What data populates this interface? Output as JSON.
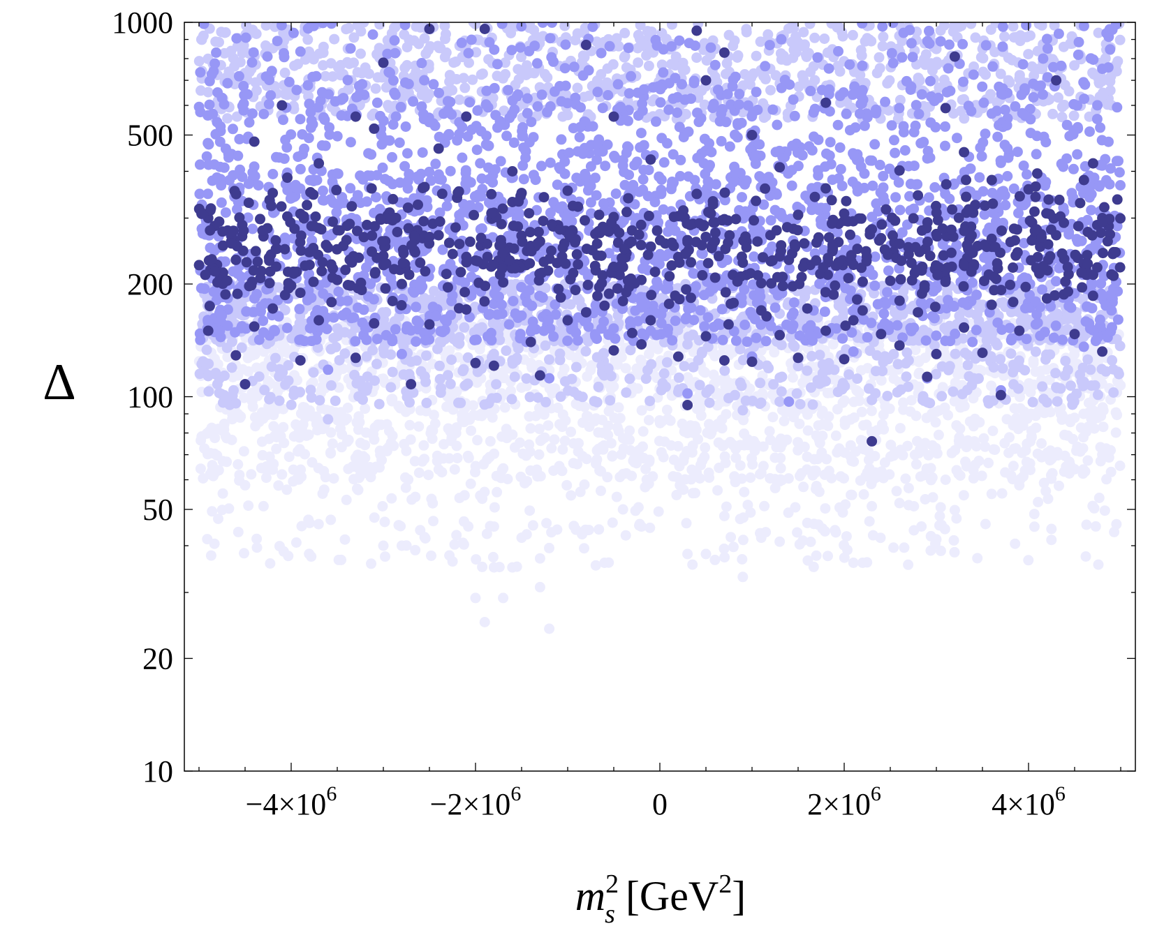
{
  "chart_data": {
    "type": "scatter",
    "title": "",
    "xlabel": {
      "base": "m",
      "sup": "2",
      "sub": "s",
      "unit_open": " [GeV",
      "unit_sup": "2",
      "unit_close": "]"
    },
    "ylabel": "Δ",
    "y_scale": "log",
    "xlim": [
      -5000000,
      5000000
    ],
    "ylim": [
      10,
      1000
    ],
    "grid": false,
    "legend": "none",
    "x_ticks": [
      {
        "value": -4000000,
        "mantissa": "−4×10",
        "exp": "6"
      },
      {
        "value": -2000000,
        "mantissa": "−2×10",
        "exp": "6"
      },
      {
        "value": 0,
        "mantissa": "0",
        "exp": ""
      },
      {
        "value": 2000000,
        "mantissa": "2×10",
        "exp": "6"
      },
      {
        "value": 4000000,
        "mantissa": "4×10",
        "exp": "6"
      }
    ],
    "y_ticks": [
      {
        "value": 1000,
        "label": "1000"
      },
      {
        "value": 500,
        "label": "500"
      },
      {
        "value": 200,
        "label": "200"
      },
      {
        "value": 100,
        "label": "100"
      },
      {
        "value": 50,
        "label": "50"
      },
      {
        "value": 20,
        "label": "20"
      },
      {
        "value": 10,
        "label": "10"
      }
    ],
    "series": [
      {
        "color": "#ececfd",
        "density_bands": [
          [
            35,
            60,
            0.25
          ],
          [
            60,
            100,
            0.9
          ],
          [
            100,
            160,
            1.0
          ]
        ],
        "points": [
          [
            -1900000,
            25
          ],
          [
            -1200000,
            24
          ],
          [
            -2000000,
            29
          ],
          [
            -1700000,
            29
          ],
          [
            -1300000,
            31
          ],
          [
            -1300000,
            37
          ],
          [
            -1800000,
            35
          ],
          [
            -1600000,
            35
          ],
          [
            900000,
            33
          ],
          [
            2100000,
            36
          ],
          [
            2200000,
            36
          ],
          [
            500000,
            38
          ],
          [
            -3000000,
            40
          ],
          [
            -2800000,
            40
          ],
          [
            -3800000,
            46
          ],
          [
            -4300000,
            51
          ],
          [
            -200000,
            45
          ],
          [
            300000,
            38
          ],
          [
            -600000,
            36
          ],
          [
            -1800000,
            45
          ],
          [
            -800000,
            44
          ],
          [
            1100000,
            42
          ],
          [
            1600000,
            46
          ],
          [
            2300000,
            51
          ],
          [
            2600000,
            52
          ],
          [
            3600000,
            55
          ],
          [
            3900000,
            58
          ],
          [
            -4500000,
            58
          ],
          [
            -3400000,
            53
          ],
          [
            -2600000,
            44
          ],
          [
            -1500000,
            42
          ],
          [
            -400000,
            50
          ],
          [
            700000,
            48
          ],
          [
            1300000,
            41
          ],
          [
            1900000,
            44
          ],
          [
            2700000,
            57
          ],
          [
            3100000,
            60
          ],
          [
            -4700000,
            67
          ],
          [
            -4100000,
            62
          ],
          [
            4800000,
            70
          ],
          [
            4500000,
            64
          ]
        ]
      },
      {
        "color": "#c9c9fb",
        "density_bands": [
          [
            95,
            140,
            0.4
          ],
          [
            140,
            200,
            0.9
          ],
          [
            550,
            1000,
            1.0
          ]
        ],
        "points": [
          [
            -3600000,
            87
          ],
          [
            2300000,
            98
          ],
          [
            1300000,
            97
          ],
          [
            -3200000,
            106
          ],
          [
            200000,
            103
          ],
          [
            1800000,
            110
          ],
          [
            4300000,
            106
          ],
          [
            -4600000,
            96
          ],
          [
            -4800000,
            108
          ],
          [
            3900000,
            120
          ],
          [
            2700000,
            125
          ],
          [
            -2700000,
            124
          ],
          [
            -1600000,
            125
          ],
          [
            900000,
            92
          ],
          [
            -2200000,
            140
          ],
          [
            300000,
            138
          ],
          [
            4000000,
            142
          ],
          [
            -4200000,
            150
          ],
          [
            3500000,
            128
          ]
        ]
      },
      {
        "color": "#9797f6",
        "density_bands": [
          [
            140,
            220,
            0.7
          ],
          [
            220,
            400,
            1.0
          ],
          [
            400,
            700,
            0.6
          ],
          [
            700,
            1000,
            0.15
          ]
        ],
        "points": [
          [
            -4500000,
            108
          ],
          [
            300000,
            102
          ],
          [
            1400000,
            97
          ],
          [
            -3600000,
            118
          ],
          [
            -2800000,
            130
          ],
          [
            2900000,
            112
          ],
          [
            -1200000,
            112
          ],
          [
            3700000,
            104
          ],
          [
            -700000,
            145
          ],
          [
            2100000,
            132
          ],
          [
            4600000,
            136
          ],
          [
            -4900000,
            158
          ],
          [
            4900000,
            170
          ],
          [
            -100000,
            150
          ],
          [
            1000000,
            128
          ]
        ]
      },
      {
        "color": "#3e3b8f",
        "points": [
          [
            -4500000,
            108
          ],
          [
            -2700000,
            108
          ],
          [
            -1300000,
            114
          ],
          [
            300000,
            95
          ],
          [
            2300000,
            76
          ],
          [
            3700000,
            101
          ],
          [
            2900000,
            113
          ],
          [
            -2000000,
            123
          ],
          [
            -1800000,
            121
          ],
          [
            -4600000,
            129
          ],
          [
            -3900000,
            125
          ],
          [
            -3300000,
            127
          ],
          [
            -500000,
            133
          ],
          [
            -200000,
            138
          ],
          [
            200000,
            128
          ],
          [
            700000,
            125
          ],
          [
            1000000,
            124
          ],
          [
            1500000,
            127
          ],
          [
            2000000,
            126
          ],
          [
            2600000,
            137
          ],
          [
            3000000,
            130
          ],
          [
            3500000,
            131
          ],
          [
            4800000,
            132
          ],
          [
            -4900000,
            150
          ],
          [
            -4400000,
            154
          ],
          [
            -3700000,
            160
          ],
          [
            -3100000,
            157
          ],
          [
            -2500000,
            156
          ],
          [
            -1400000,
            140
          ],
          [
            -1000000,
            160
          ],
          [
            -300000,
            148
          ],
          [
            500000,
            145
          ],
          [
            1300000,
            146
          ],
          [
            1800000,
            150
          ],
          [
            2400000,
            147
          ],
          [
            3300000,
            153
          ],
          [
            3900000,
            150
          ],
          [
            4500000,
            147
          ],
          [
            -4200000,
            172
          ],
          [
            -2900000,
            180
          ],
          [
            -2100000,
            171
          ],
          [
            -800000,
            168
          ],
          [
            -600000,
            175
          ],
          [
            100000,
            177
          ],
          [
            800000,
            178
          ],
          [
            1600000,
            172
          ],
          [
            2200000,
            170
          ],
          [
            2800000,
            168
          ],
          [
            3600000,
            176
          ],
          [
            4200000,
            183
          ],
          [
            4700000,
            186
          ],
          [
            -4800000,
            202
          ],
          [
            -4000000,
            198
          ],
          [
            -3500000,
            205
          ],
          [
            -2300000,
            196
          ],
          [
            -1700000,
            202
          ],
          [
            -1100000,
            194
          ],
          [
            -200000,
            205
          ],
          [
            600000,
            208
          ],
          [
            1100000,
            201
          ],
          [
            1900000,
            198
          ],
          [
            2500000,
            204
          ],
          [
            3100000,
            206
          ],
          [
            3800000,
            199
          ],
          [
            4400000,
            203
          ],
          [
            4900000,
            212
          ],
          [
            -4600000,
            232
          ],
          [
            -3800000,
            225
          ],
          [
            -3000000,
            238
          ],
          [
            -2600000,
            228
          ],
          [
            -2000000,
            231
          ],
          [
            -1500000,
            226
          ],
          [
            -900000,
            240
          ],
          [
            -400000,
            222
          ],
          [
            200000,
            236
          ],
          [
            900000,
            228
          ],
          [
            1400000,
            232
          ],
          [
            2100000,
            225
          ],
          [
            2700000,
            240
          ],
          [
            3300000,
            228
          ],
          [
            4100000,
            236
          ],
          [
            4600000,
            226
          ],
          [
            -4300000,
            268
          ],
          [
            -3400000,
            262
          ],
          [
            -2400000,
            270
          ],
          [
            -1300000,
            260
          ],
          [
            -700000,
            272
          ],
          [
            300000,
            262
          ],
          [
            1200000,
            270
          ],
          [
            1700000,
            258
          ],
          [
            2400000,
            265
          ],
          [
            3000000,
            272
          ],
          [
            3600000,
            264
          ],
          [
            4300000,
            270
          ],
          [
            -4900000,
            300
          ],
          [
            -3900000,
            308
          ],
          [
            -2900000,
            296
          ],
          [
            -1800000,
            310
          ],
          [
            -500000,
            302
          ],
          [
            700000,
            298
          ],
          [
            1500000,
            306
          ],
          [
            2000000,
            295
          ],
          [
            3400000,
            310
          ],
          [
            4800000,
            300
          ],
          [
            -4200000,
            350
          ],
          [
            -2200000,
            340
          ],
          [
            -1000000,
            355
          ],
          [
            400000,
            348
          ],
          [
            1800000,
            360
          ],
          [
            2800000,
            345
          ],
          [
            4000000,
            358
          ],
          [
            -3700000,
            420
          ],
          [
            -1600000,
            400
          ],
          [
            -100000,
            430
          ],
          [
            1300000,
            410
          ],
          [
            2600000,
            402
          ],
          [
            4700000,
            420
          ],
          [
            -4400000,
            480
          ],
          [
            -3100000,
            520
          ],
          [
            -2400000,
            460
          ],
          [
            1000000,
            500
          ],
          [
            3300000,
            450
          ],
          [
            -4100000,
            600
          ],
          [
            -2100000,
            560
          ],
          [
            -500000,
            560
          ],
          [
            1800000,
            610
          ],
          [
            4300000,
            700
          ],
          [
            -2500000,
            960
          ],
          [
            -1900000,
            960
          ],
          [
            400000,
            950
          ],
          [
            -800000,
            870
          ],
          [
            700000,
            830
          ],
          [
            3200000,
            810
          ],
          [
            -3000000,
            780
          ],
          [
            3100000,
            590
          ],
          [
            -3300000,
            560
          ],
          [
            500000,
            700
          ],
          [
            -1500000,
            350
          ],
          [
            -3600000,
            250
          ],
          [
            2300000,
            280
          ],
          [
            -2800000,
            200
          ],
          [
            -400000,
            180
          ],
          [
            -100000,
            160
          ],
          [
            1100000,
            170
          ],
          [
            2100000,
            160
          ]
        ]
      }
    ]
  }
}
